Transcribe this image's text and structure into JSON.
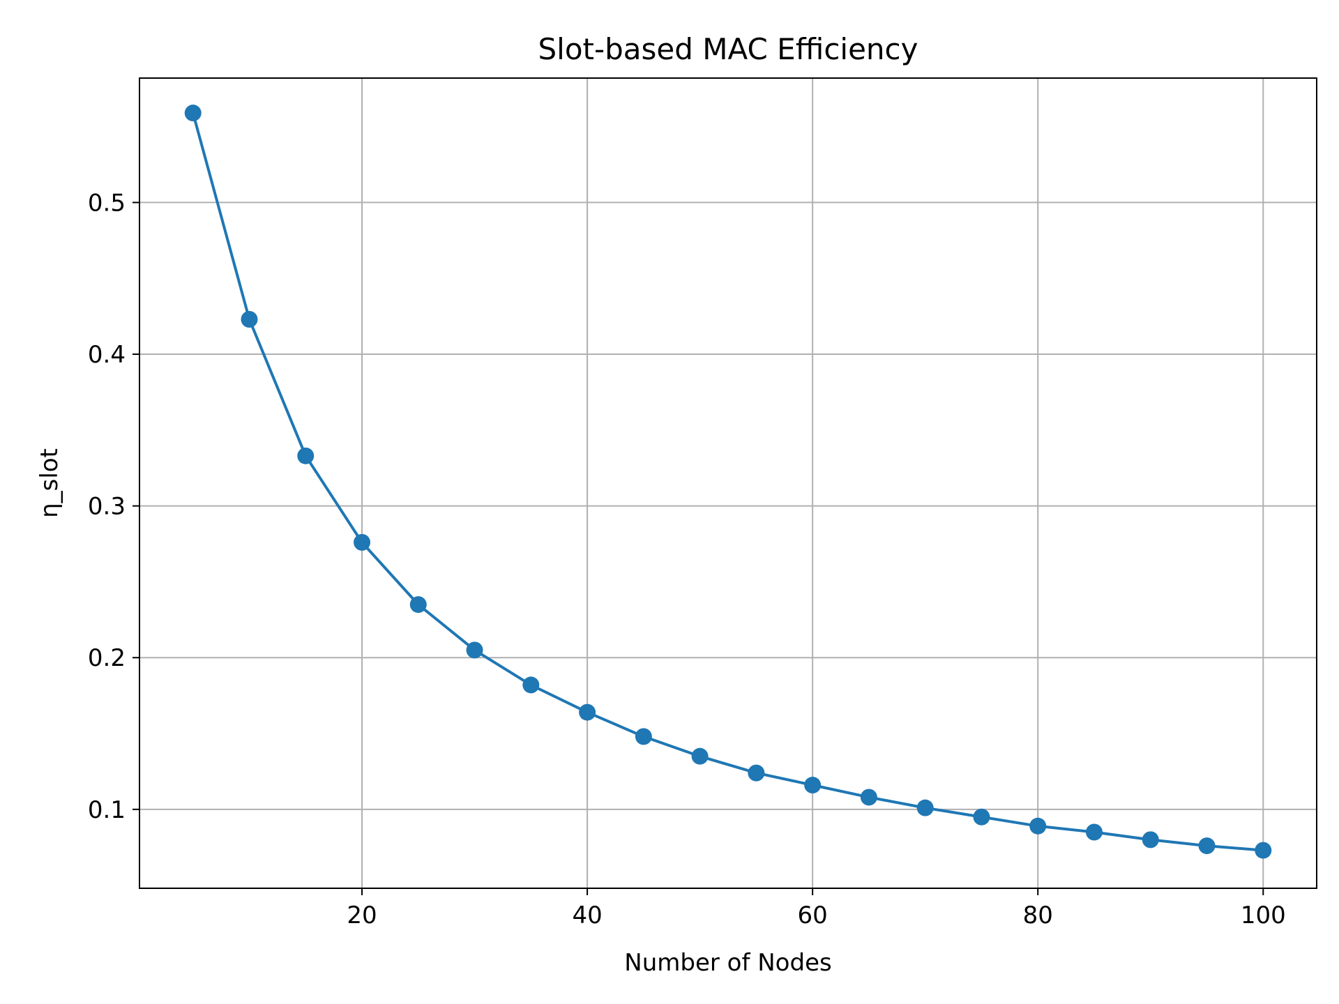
{
  "chart_data": {
    "type": "line",
    "title": "Slot-based MAC Efficiency",
    "xlabel": "Number of Nodes",
    "ylabel": "η_slot",
    "xlim": [
      0.25,
      104.75
    ],
    "ylim": [
      0.048,
      0.582
    ],
    "xticks": [
      20,
      40,
      60,
      80,
      100
    ],
    "yticks": [
      0.1,
      0.2,
      0.3,
      0.4,
      0.5
    ],
    "xtick_labels": [
      "20",
      "40",
      "60",
      "80",
      "100"
    ],
    "ytick_labels": [
      "0.1",
      "0.2",
      "0.3",
      "0.4",
      "0.5"
    ],
    "grid": true,
    "marker": "circle",
    "color": "#1f77b4",
    "series": [
      {
        "x": [
          5,
          10,
          15,
          20,
          25,
          30,
          35,
          40,
          45,
          50,
          55,
          60,
          65,
          70,
          75,
          80,
          85,
          90,
          95,
          100
        ],
        "values": [
          0.559,
          0.423,
          0.333,
          0.276,
          0.235,
          0.205,
          0.182,
          0.164,
          0.148,
          0.135,
          0.124,
          0.116,
          0.108,
          0.101,
          0.095,
          0.089,
          0.085,
          0.08,
          0.076,
          0.073
        ]
      }
    ]
  }
}
